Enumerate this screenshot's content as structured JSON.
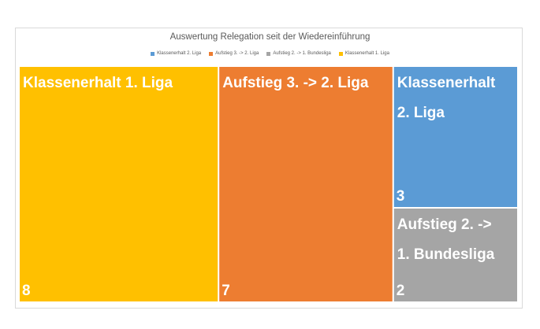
{
  "chart_data": {
    "type": "treemap",
    "title": "Auswertung Relegation seit der Wiedereinführung",
    "legend_position": "top",
    "series": [
      {
        "name": "Klassenerhalt 1. Liga",
        "value": 8,
        "color": "#FFC000",
        "label_lines": [
          "Klassenerhalt 1. Liga"
        ]
      },
      {
        "name": "Aufstieg 3. -> 2. Liga",
        "value": 7,
        "color": "#ED7D31",
        "label_lines": [
          "Aufstieg 3. -> 2. Liga"
        ]
      },
      {
        "name": "Klassenerhalt 2. Liga",
        "value": 3,
        "color": "#5B9BD5",
        "label_lines": [
          "Klassenerhalt",
          "2. Liga"
        ]
      },
      {
        "name": "Aufstieg 2. -> 1. Bundesliga",
        "value": 2,
        "color": "#A5A5A5",
        "label_lines": [
          "Aufstieg 2. ->",
          "1. Bundesliga"
        ]
      }
    ],
    "legend": [
      {
        "label": "Klassenerhalt 2. Liga",
        "color": "#5B9BD5"
      },
      {
        "label": "Aufstieg 3. -> 2. Liga",
        "color": "#ED7D31"
      },
      {
        "label": "Aufstieg 2. -> 1. Bundesliga",
        "color": "#A5A5A5"
      },
      {
        "label": "Klassenerhalt 1. Liga",
        "color": "#FFC000"
      }
    ]
  }
}
